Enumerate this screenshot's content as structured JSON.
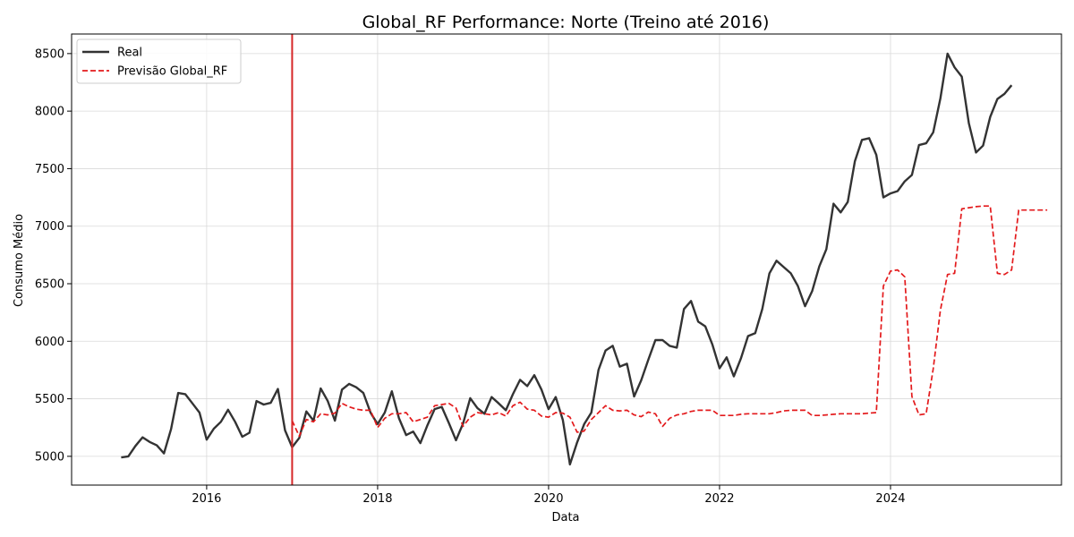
{
  "chart_data": {
    "type": "line",
    "title": "Global_RF Performance: Norte (Treino até 2016)",
    "xlabel": "Data",
    "ylabel": "Consumo Médio",
    "xlim": [
      2014.42,
      2026.0
    ],
    "ylim": [
      4750,
      8670
    ],
    "x_ticks": [
      2016,
      2018,
      2020,
      2022,
      2024
    ],
    "y_ticks": [
      5000,
      5500,
      6000,
      6500,
      7000,
      7500,
      8000,
      8500
    ],
    "grid": true,
    "legend_position": "upper-left",
    "split_line": {
      "x": 2017.0,
      "color": "#d62728"
    },
    "series": [
      {
        "name": "Real",
        "color": "#333333",
        "style": "solid",
        "x_start": 2015.0,
        "step_months": 1,
        "values": [
          4990,
          5000,
          5090,
          5165,
          5125,
          5095,
          5025,
          5235,
          5550,
          5540,
          5460,
          5380,
          5145,
          5240,
          5300,
          5405,
          5300,
          5170,
          5205,
          5480,
          5450,
          5465,
          5585,
          5225,
          5080,
          5160,
          5390,
          5310,
          5590,
          5480,
          5310,
          5580,
          5630,
          5600,
          5550,
          5380,
          5280,
          5380,
          5565,
          5330,
          5185,
          5215,
          5115,
          5270,
          5410,
          5430,
          5290,
          5140,
          5285,
          5505,
          5420,
          5370,
          5515,
          5460,
          5400,
          5540,
          5665,
          5610,
          5705,
          5580,
          5410,
          5515,
          5315,
          4930,
          5120,
          5280,
          5380,
          5750,
          5920,
          5960,
          5780,
          5805,
          5520,
          5660,
          5840,
          6010,
          6010,
          5960,
          5945,
          6280,
          6350,
          6170,
          6130,
          5970,
          5765,
          5860,
          5695,
          5850,
          6045,
          6070,
          6280,
          6590,
          6700,
          6645,
          6590,
          6480,
          6305,
          6435,
          6650,
          6800,
          7195,
          7120,
          7210,
          7565,
          7750,
          7765,
          7620,
          7250,
          7285,
          7305,
          7390,
          7445,
          7705,
          7720,
          7815,
          8110,
          8500,
          8380,
          8300,
          7895,
          7640,
          7700,
          7950,
          8105,
          8150,
          8225
        ]
      },
      {
        "name": "Previsão Global_RF",
        "color": "#e31a1c",
        "style": "dashed",
        "x_start": 2017.0,
        "step_months": 1,
        "values": [
          5310,
          5175,
          5320,
          5300,
          5370,
          5360,
          5375,
          5460,
          5430,
          5410,
          5400,
          5400,
          5250,
          5330,
          5370,
          5370,
          5380,
          5300,
          5320,
          5340,
          5440,
          5450,
          5460,
          5420,
          5260,
          5340,
          5380,
          5370,
          5360,
          5380,
          5350,
          5440,
          5470,
          5410,
          5400,
          5350,
          5340,
          5380,
          5375,
          5340,
          5210,
          5220,
          5320,
          5380,
          5440,
          5400,
          5395,
          5400,
          5360,
          5345,
          5385,
          5370,
          5260,
          5330,
          5360,
          5370,
          5390,
          5400,
          5400,
          5400,
          5355,
          5355,
          5355,
          5365,
          5370,
          5370,
          5370,
          5370,
          5380,
          5395,
          5400,
          5400,
          5400,
          5355,
          5355,
          5360,
          5365,
          5370,
          5370,
          5370,
          5370,
          5375,
          5380,
          6480,
          6610,
          6620,
          6560,
          5520,
          5360,
          5370,
          5760,
          6270,
          6580,
          6590,
          7150,
          7160,
          7170,
          7175,
          7175,
          6590,
          6580,
          6620,
          7140,
          7140,
          7140,
          7140,
          7140
        ]
      }
    ]
  }
}
